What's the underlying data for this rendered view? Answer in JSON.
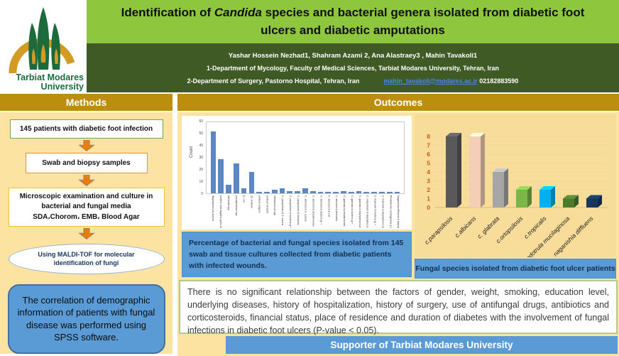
{
  "logo": {
    "line1": "Tarbiat Modares",
    "line2": "University"
  },
  "title": {
    "prefix": "Identification of ",
    "italic": "Candida",
    "suffix": " species and bacterial genera isolated from diabetic foot ulcers and diabetic amputations"
  },
  "authors": {
    "line1": "Yashar Hossein Nezhad1,  Shahram Azami 2, Ana Alastraey3 , Mahin Tavakoli1",
    "line2": "1-Department of Mycology, Faculty of Medical Sciences, Tarbiat Modares University, Tehran, Iran",
    "line3": "2-Department of Surgery, Pastorno Hospital, Tehran, Iran",
    "email": "mahin_tavakoli@modares.ac.ir",
    "phone": "02182883590"
  },
  "methods": {
    "header": "Methods",
    "step1": "145 patients with diabetic foot infection",
    "step2": "Swab and biopsy samples",
    "step3_line1": "Microscopic examination and culture in bacterial and fungal media",
    "step3_line2": "SDA،Chorom، EMB، Blood Agar",
    "step4": "Using MALDI-TOF for molecular identification of fungi",
    "step5": "The correlation of demographic information of patients with fungal disease was performed using SPSS software."
  },
  "outcomes": {
    "header": "Outcomes",
    "caption1": "Percentage of bacterial and fungal species isolated from 145 swab and tissue cultures collected from diabetic patients with infected wounds.",
    "caption2": "Fungal species isolated from diabetic foot ulcer patients",
    "results": "There is no significant relationship between the factors of gender, weight, smoking, education level, underlying diseases, history of hospitalization, history of surgery, use of antifungal drugs, antibiotics and corticosteroids, financial status, place of residence and duration of diabetes with the involvement of fungal infections in diabetic foot ulcers (P-value < 0.05)."
  },
  "footer": {
    "supporter": "Supporter of Tarbiat Modares University"
  },
  "colors": {
    "title_green": "#8ec63e",
    "authors_dark_green": "#3f5a24",
    "header_gold": "#bd8d0e",
    "panel_yellow": "#fce3a1",
    "caption_blue": "#5b9bd5",
    "bacteria_bar_blue": "#5b87c5",
    "link_blue": "#4a86e8",
    "logo_green": "#1b6b3c",
    "logo_gold": "#d29b26"
  },
  "chart_data": [
    {
      "type": "bar",
      "title": "",
      "xlabel": "",
      "ylabel": "Count",
      "ylim": [
        0,
        60
      ],
      "yticks": [
        0,
        10,
        20,
        30,
        40,
        50,
        60
      ],
      "grid": false,
      "bar_color": "#5b87c5",
      "categories": [
        "Staphylococcus aureus",
        "positive and negative gram bacteria",
        "klebsiella spp",
        "pseudomonas spp",
        "E. coli",
        "str. viridans",
        "proteus vulgaris",
        "proteus mirabilis",
        "streptococcus spp",
        "C. parapsilosis & S. aureus",
        "C. parapsilosis & bacteria gr +",
        "C. parapsilosis & klebsiella",
        "C. albicans & S. aureus",
        "C. albicans & pseudomonas",
        "C. albicans & bacteria gr +",
        "C. albicans & E.coli",
        "C. albicans & klebsiella",
        "C. glabrata & pseudomonas",
        "C. glabrata & bacteria gr +",
        "C. glabrata & staphylococcus",
        "C. ortopsilosis & staphylococcus",
        "C. tropicalis & bacteria gr +",
        "C. tropicalis & staphylococcus",
        "Rhodotorula mucilaginosa & staphylococcus",
        "Naganishia diffluens & staphylococcus"
      ],
      "values": [
        52,
        29,
        7,
        25,
        4,
        18,
        1,
        1,
        3,
        4,
        2,
        2,
        4,
        2,
        1,
        1,
        1,
        2,
        1,
        2,
        1,
        1,
        1,
        1,
        1
      ]
    },
    {
      "type": "bar",
      "style": "3d",
      "title": "",
      "xlabel": "",
      "ylabel": "",
      "ylim": [
        0,
        8
      ],
      "yticks": [
        0,
        1,
        2,
        3,
        4,
        5,
        6,
        7,
        8
      ],
      "grid": true,
      "tick_color": "#c55f11",
      "categories": [
        "c.parapsilosis",
        "c.albicans",
        "c. glabrata",
        "c.ortopsilosis",
        "c.tropicalis",
        "Rhodotrula mucilaginosa",
        "naganishia diffluens"
      ],
      "values": [
        8,
        8,
        4,
        2,
        2,
        1,
        1
      ],
      "colors": [
        "#595959",
        "#f5cfb5",
        "#a6a6a6",
        "#7ab648",
        "#00b0f0",
        "#4e7a2e",
        "#17365d"
      ]
    }
  ]
}
